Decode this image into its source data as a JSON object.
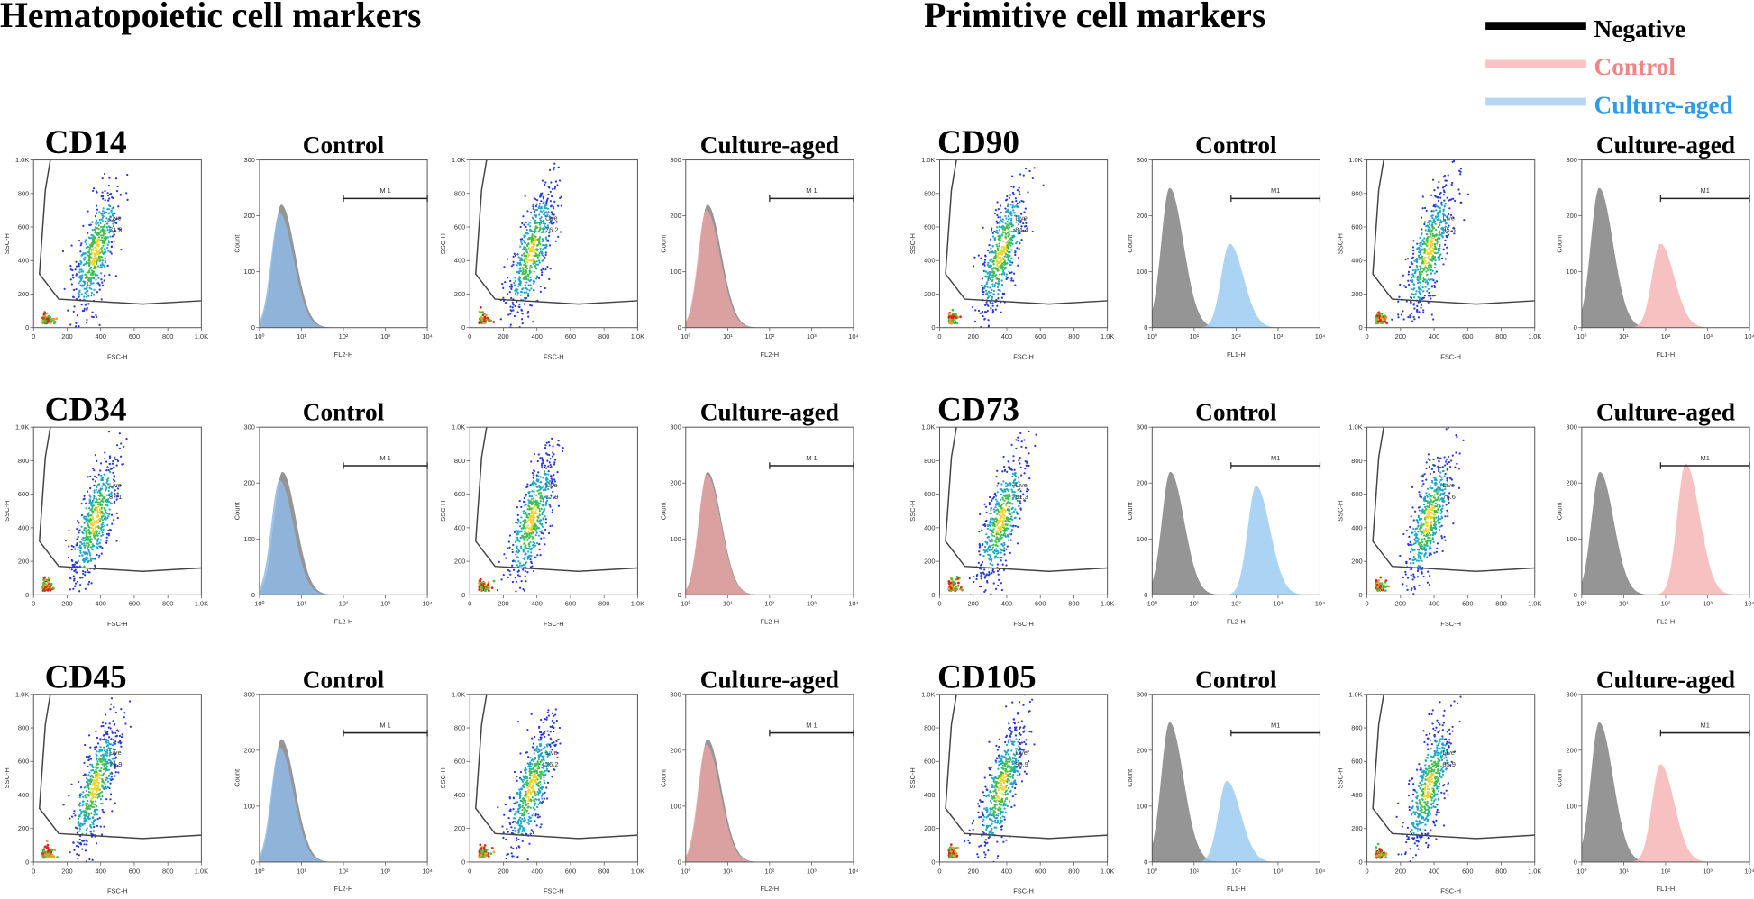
{
  "header": {
    "left_title": "Hematopoietic cell markers",
    "right_title": "Primitive cell markers"
  },
  "legend": [
    {
      "name": "Negative",
      "line_color": "#000000",
      "text_color": "#000000"
    },
    {
      "name": "Control",
      "line_color": "#f9c3c3",
      "text_color": "#f08585"
    },
    {
      "name": "Culture-aged",
      "line_color": "#b5d7f5",
      "text_color": "#2f9be8"
    }
  ],
  "scatter_axes": {
    "xlabel": "FSC-H",
    "ylabel": "SSC-H",
    "xticks": [
      0,
      200,
      400,
      600,
      800,
      {
        "value": 1000,
        "label": "1.0K"
      }
    ],
    "yticks": [
      0,
      200,
      400,
      600,
      800,
      {
        "value": 1000,
        "label": "1.0K"
      }
    ]
  },
  "histogram_axes": {
    "ylabel": "Count",
    "yticks": [
      0,
      100,
      200,
      300
    ],
    "xticks": [
      {
        "value": 1,
        "label": "10⁰"
      },
      {
        "value": 10,
        "label": "10¹"
      },
      {
        "value": 100,
        "label": "10²"
      },
      {
        "value": 1000,
        "label": "10³"
      },
      {
        "value": 10000,
        "label": "10⁴"
      }
    ]
  },
  "sections": [
    {
      "rows": [
        {
          "marker": "CD14",
          "panels": [
            {
              "gate_label": "Live",
              "gate_value": 71.9
            },
            {
              "title": "Control",
              "xlabel": "FL2-H",
              "gate_label": "M 1",
              "peaks": [
                {
                  "color": "#8a8a8a",
                  "center": 3.3,
                  "height": 220
                },
                {
                  "color": "#8fb8e6",
                  "center": 3,
                  "height": 205
                }
              ]
            },
            {
              "gate_label": "Live",
              "gate_value": 76.2
            },
            {
              "title": "Culture-aged",
              "xlabel": "FL2-H",
              "gate_label": "M 1",
              "peaks": [
                {
                  "color": "#8a8a8a",
                  "center": 3.3,
                  "height": 220
                },
                {
                  "color": "#e8a3a3",
                  "center": 3.1,
                  "height": 210
                }
              ]
            }
          ]
        },
        {
          "marker": "CD34",
          "panels": [
            {
              "gate_label": "Live",
              "gate_value": 87.1
            },
            {
              "title": "Control",
              "xlabel": "FL2-H",
              "gate_label": "M 1",
              "peaks": [
                {
                  "color": "#8a8a8a",
                  "center": 3.5,
                  "height": 220
                },
                {
                  "color": "#8fb8e6",
                  "center": 3,
                  "height": 205
                }
              ]
            },
            {
              "gate_label": "Live",
              "gate_value": 77.9
            },
            {
              "title": "Culture-aged",
              "xlabel": "FL2-H",
              "gate_label": "M 1",
              "peaks": [
                {
                  "color": "#8a8a8a",
                  "center": 3.3,
                  "height": 220
                },
                {
                  "color": "#e8a3a3",
                  "center": 3.2,
                  "height": 215
                }
              ]
            }
          ]
        },
        {
          "marker": "CD45",
          "panels": [
            {
              "gate_label": "Live",
              "gate_value": 71.9
            },
            {
              "title": "Control",
              "xlabel": "FL2-H",
              "gate_label": "M 1",
              "peaks": [
                {
                  "color": "#8a8a8a",
                  "center": 3.3,
                  "height": 220
                },
                {
                  "color": "#8fb8e6",
                  "center": 3,
                  "height": 205
                }
              ]
            },
            {
              "gate_label": "Live",
              "gate_value": 76.2
            },
            {
              "title": "Culture-aged",
              "xlabel": "FL2-H",
              "gate_label": "M 1",
              "peaks": [
                {
                  "color": "#8a8a8a",
                  "center": 3.3,
                  "height": 220
                },
                {
                  "color": "#e8a3a3",
                  "center": 3.1,
                  "height": 210
                }
              ]
            }
          ]
        }
      ]
    },
    {
      "rows": [
        {
          "marker": "CD90",
          "panels": [
            {
              "gate_label": "Live",
              "gate_value": 84.4
            },
            {
              "title": "Control",
              "xlabel": "FL1-H",
              "gate_label": "M1",
              "peaks": [
                {
                  "color": "#8a8a8a",
                  "center": 2.6,
                  "height": 250
                },
                {
                  "color": "#9ccbf2",
                  "center": 70,
                  "height": 150
                }
              ]
            },
            {
              "gate_label": "Live",
              "gate_value": 85.3
            },
            {
              "title": "Culture-aged",
              "xlabel": "FL1-H",
              "gate_label": "M1",
              "peaks": [
                {
                  "color": "#8a8a8a",
                  "center": 2.6,
                  "height": 250
                },
                {
                  "color": "#f7b6b6",
                  "center": 75,
                  "height": 150
                }
              ]
            }
          ]
        },
        {
          "marker": "CD73",
          "panels": [
            {
              "gate_label": "Live",
              "gate_value": 81.3
            },
            {
              "title": "Control",
              "xlabel": "FL2-H",
              "gate_label": "M1",
              "peaks": [
                {
                  "color": "#8a8a8a",
                  "center": 2.7,
                  "height": 220
                },
                {
                  "color": "#9ccbf2",
                  "center": 300,
                  "height": 195
                }
              ]
            },
            {
              "gate_label": "Live",
              "gate_value": 76.6
            },
            {
              "title": "Culture-aged",
              "xlabel": "FL2-H",
              "gate_label": "M1",
              "peaks": [
                {
                  "color": "#8a8a8a",
                  "center": 2.7,
                  "height": 220
                },
                {
                  "color": "#f7b6b6",
                  "center": 300,
                  "height": 235
                }
              ]
            }
          ]
        },
        {
          "marker": "CD105",
          "panels": [
            {
              "gate_label": "Live",
              "gate_value": 90.9
            },
            {
              "title": "Control",
              "xlabel": "FL1-H",
              "gate_label": "M1",
              "peaks": [
                {
                  "color": "#8a8a8a",
                  "center": 2.6,
                  "height": 250
                },
                {
                  "color": "#9ccbf2",
                  "center": 60,
                  "height": 145
                }
              ]
            },
            {
              "gate_label": "Live",
              "gate_value": 85.9
            },
            {
              "title": "Culture-aged",
              "xlabel": "FL1-H",
              "gate_label": "M1",
              "peaks": [
                {
                  "color": "#8a8a8a",
                  "center": 2.6,
                  "height": 250
                },
                {
                  "color": "#f7b6b6",
                  "center": 75,
                  "height": 175
                }
              ]
            }
          ]
        }
      ]
    }
  ]
}
